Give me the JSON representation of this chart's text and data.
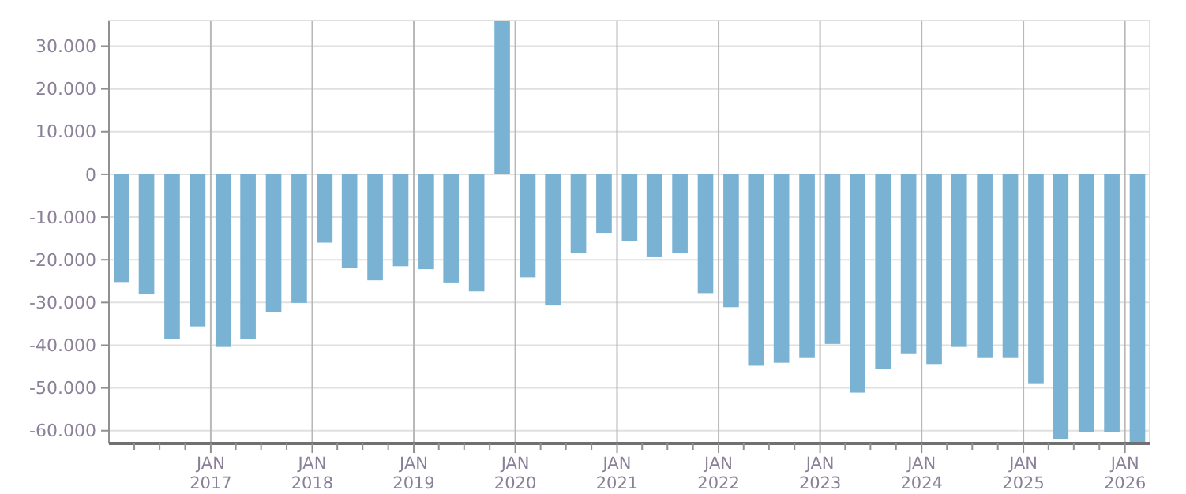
{
  "chart_data": {
    "type": "bar",
    "x": [
      "2016-02-15",
      "2016-05-15",
      "2016-08-15",
      "2016-11-15",
      "2017-02-15",
      "2017-05-15",
      "2017-08-15",
      "2017-11-15",
      "2018-02-15",
      "2018-05-15",
      "2018-08-15",
      "2018-11-15",
      "2019-02-15",
      "2019-05-15",
      "2019-08-15",
      "2019-11-15",
      "2020-02-15",
      "2020-05-15",
      "2020-08-15",
      "2020-11-15",
      "2021-02-15",
      "2021-05-15",
      "2021-08-15",
      "2021-11-15",
      "2022-02-15",
      "2022-05-15",
      "2022-08-15",
      "2022-11-15",
      "2023-02-15",
      "2023-05-15",
      "2023-08-15",
      "2023-11-15",
      "2024-02-15",
      "2024-05-15",
      "2024-08-15",
      "2024-11-15",
      "2025-02-15",
      "2025-05-15",
      "2025-08-15",
      "2025-11-15",
      "2026-02-15"
    ],
    "values": [
      -25200,
      -28100,
      -38500,
      -35600,
      -40400,
      -38500,
      -32200,
      -30100,
      -16000,
      -22000,
      -24800,
      -21500,
      -22200,
      -25300,
      -27400,
      36000,
      -24100,
      -30700,
      -18500,
      -13700,
      -15700,
      -19400,
      -18500,
      -27800,
      -31100,
      -44800,
      -44100,
      -43000,
      -39700,
      -51100,
      -45600,
      -41900,
      -44400,
      -40400,
      -43000,
      -43000,
      -48900,
      -61900,
      -60400,
      -60400,
      -63000
    ],
    "color": "#7ab2d4",
    "xlim": [
      "2016-01-01",
      "2026-03-31"
    ],
    "xticks": [
      {
        "value": "2016-04-01",
        "label": null
      },
      {
        "value": "2016-07-01",
        "label": null
      },
      {
        "value": "2016-10-01",
        "label": null
      },
      {
        "value": "2017-01-01",
        "label": "JAN 2017"
      },
      {
        "value": "2017-04-01",
        "label": null
      },
      {
        "value": "2017-07-01",
        "label": null
      },
      {
        "value": "2017-10-01",
        "label": null
      },
      {
        "value": "2018-01-01",
        "label": "JAN 2018"
      },
      {
        "value": "2018-04-01",
        "label": null
      },
      {
        "value": "2018-07-01",
        "label": null
      },
      {
        "value": "2018-10-01",
        "label": null
      },
      {
        "value": "2019-01-01",
        "label": "JAN 2019"
      },
      {
        "value": "2019-04-01",
        "label": null
      },
      {
        "value": "2019-07-01",
        "label": null
      },
      {
        "value": "2019-10-01",
        "label": null
      },
      {
        "value": "2020-01-01",
        "label": "JAN 2020"
      },
      {
        "value": "2020-04-01",
        "label": null
      },
      {
        "value": "2020-07-01",
        "label": null
      },
      {
        "value": "2020-10-01",
        "label": null
      },
      {
        "value": "2021-01-01",
        "label": "JAN 2021"
      },
      {
        "value": "2021-04-01",
        "label": null
      },
      {
        "value": "2021-07-01",
        "label": null
      },
      {
        "value": "2021-10-01",
        "label": null
      },
      {
        "value": "2022-01-01",
        "label": "JAN 2022"
      },
      {
        "value": "2022-04-01",
        "label": null
      },
      {
        "value": "2022-07-01",
        "label": null
      },
      {
        "value": "2022-10-01",
        "label": null
      },
      {
        "value": "2023-01-01",
        "label": "JAN 2023"
      },
      {
        "value": "2023-04-01",
        "label": null
      },
      {
        "value": "2023-07-01",
        "label": null
      },
      {
        "value": "2023-10-01",
        "label": null
      },
      {
        "value": "2024-01-01",
        "label": "JAN 2024"
      },
      {
        "value": "2024-04-01",
        "label": null
      },
      {
        "value": "2024-07-01",
        "label": null
      },
      {
        "value": "2024-10-01",
        "label": null
      },
      {
        "value": "2025-01-01",
        "label": "JAN 2025"
      },
      {
        "value": "2025-04-01",
        "label": null
      },
      {
        "value": "2025-07-01",
        "label": null
      },
      {
        "value": "2025-10-01",
        "label": null
      },
      {
        "value": "2026-01-01",
        "label": "JAN 2026"
      }
    ],
    "ylim": [
      -63000,
      36000
    ],
    "yticks": [
      {
        "value": -60000,
        "label": "-60.000"
      },
      {
        "value": -50000,
        "label": "-50.000"
      },
      {
        "value": -40000,
        "label": "-40.000"
      },
      {
        "value": -30000,
        "label": "-30.000"
      },
      {
        "value": -20000,
        "label": "-20.000"
      },
      {
        "value": -10000,
        "label": "-10.000"
      },
      0,
      {
        "value": 10000,
        "label": "10.000"
      },
      {
        "value": 20000,
        "label": "20.000"
      },
      {
        "value": 30000,
        "label": "30.000"
      }
    ],
    "grid": true
  }
}
